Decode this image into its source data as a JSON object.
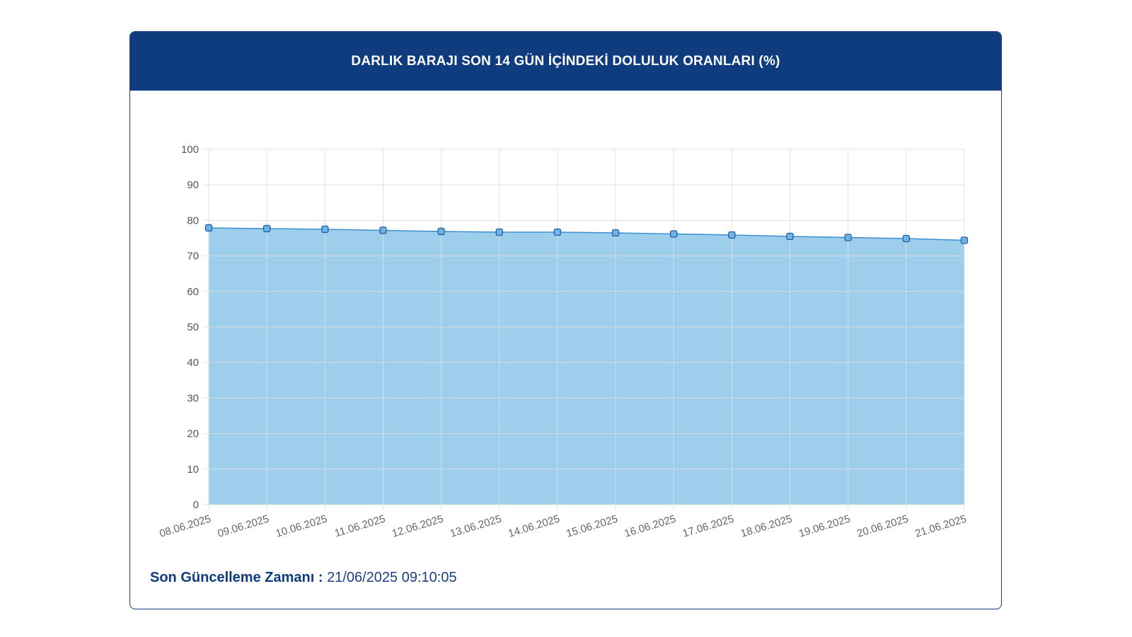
{
  "header": {
    "title": "DARLIK BARAJI SON 14 GÜN İÇİNDEKİ DOLULUK ORANLARI (%)"
  },
  "footer": {
    "label": "Son Güncelleme Zamanı :",
    "value": "21/06/2025 09:10:05"
  },
  "colors": {
    "header_bg": "#0f3b7f",
    "area_fill": "#9dcfec",
    "line": "#3d8fd0",
    "grid": "#dddddd"
  },
  "chart_data": {
    "type": "area",
    "title": "DARLIK BARAJI SON 14 GÜN İÇİNDEKİ DOLULUK ORANLARI (%)",
    "categories": [
      "08.06.2025",
      "09.06.2025",
      "10.06.2025",
      "11.06.2025",
      "12.06.2025",
      "13.06.2025",
      "14.06.2025",
      "15.06.2025",
      "16.06.2025",
      "17.06.2025",
      "18.06.2025",
      "19.06.2025",
      "20.06.2025",
      "21.06.2025"
    ],
    "series": [
      {
        "values": [
          77.9,
          77.7,
          77.5,
          77.2,
          76.9,
          76.7,
          76.7,
          76.5,
          76.2,
          75.9,
          75.5,
          75.2,
          74.9,
          74.4
        ]
      }
    ],
    "ylim": [
      0,
      100
    ],
    "yticks": [
      0,
      10,
      20,
      30,
      40,
      50,
      60,
      70,
      80,
      90,
      100
    ],
    "grid": true,
    "legend": "none"
  }
}
